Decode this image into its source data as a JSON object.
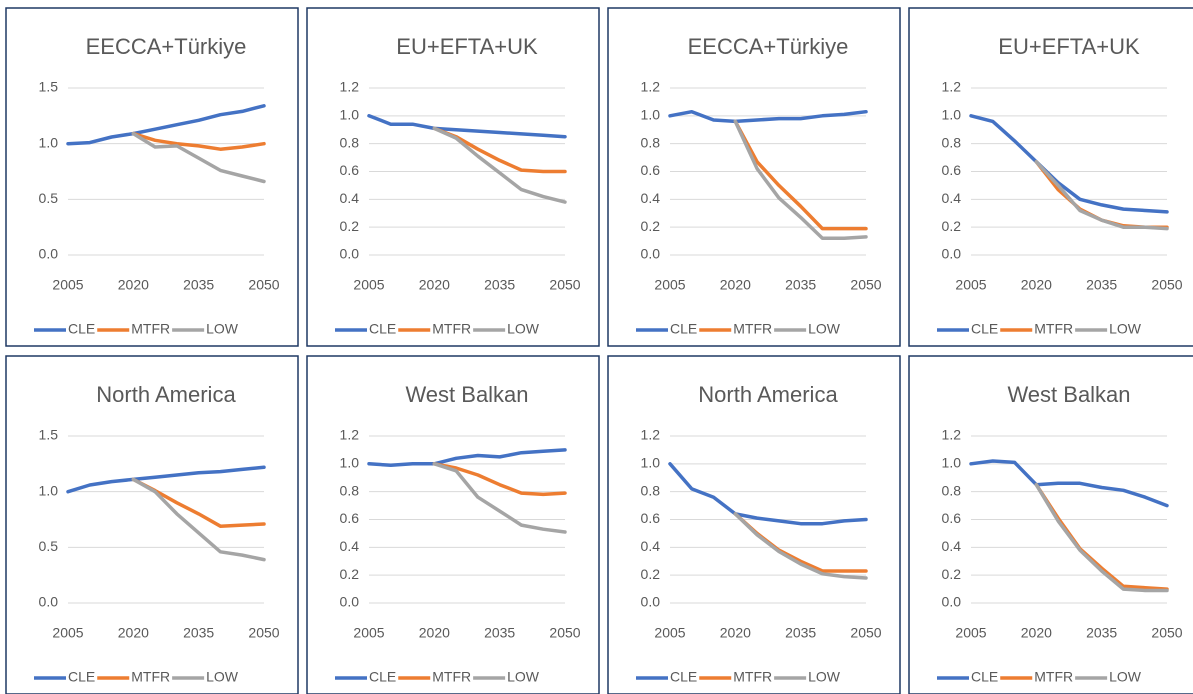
{
  "chart_data": [
    {
      "type": "line",
      "title": "EECCA+Türkiye",
      "x": [
        2005,
        2010,
        2015,
        2020,
        2025,
        2030,
        2035,
        2040,
        2045,
        2050
      ],
      "xlim": [
        2005,
        2050
      ],
      "xticks": [
        2005,
        2020,
        2035,
        2050
      ],
      "ylim": [
        0,
        1.5
      ],
      "yticks": [
        {
          "value": 0,
          "label": "0.0"
        },
        0.5,
        {
          "value": 1,
          "label": "1.0"
        },
        1.5
      ],
      "grid": true,
      "legend": "bottom",
      "series": [
        {
          "name": "CLE",
          "color": "#4472c4",
          "values": [
            1.0,
            1.01,
            1.06,
            1.09,
            1.13,
            1.17,
            1.21,
            1.26,
            1.29,
            1.34
          ]
        },
        {
          "name": "MTFR",
          "color": "#ed7d31",
          "values": [
            null,
            null,
            null,
            1.09,
            1.03,
            1.0,
            0.98,
            0.95,
            0.97,
            1.0
          ]
        },
        {
          "name": "LOW",
          "color": "#a5a5a5",
          "values": [
            null,
            null,
            null,
            1.09,
            0.97,
            0.98,
            0.87,
            0.76,
            0.71,
            0.66
          ]
        }
      ]
    },
    {
      "type": "line",
      "title": "EU+EFTA+UK",
      "x": [
        2005,
        2010,
        2015,
        2020,
        2025,
        2030,
        2035,
        2040,
        2045,
        2050
      ],
      "xlim": [
        2005,
        2050
      ],
      "xticks": [
        2005,
        2020,
        2035,
        2050
      ],
      "ylim": [
        0,
        1.2
      ],
      "yticks": [
        {
          "value": 0,
          "label": "0.0"
        },
        0.2,
        0.4,
        0.6,
        0.8,
        {
          "value": 1,
          "label": "1.0"
        },
        1.2
      ],
      "grid": true,
      "legend": "bottom",
      "series": [
        {
          "name": "CLE",
          "color": "#4472c4",
          "values": [
            1.0,
            0.94,
            0.94,
            0.91,
            0.9,
            0.89,
            0.88,
            0.87,
            0.86,
            0.85
          ]
        },
        {
          "name": "MTFR",
          "color": "#ed7d31",
          "values": [
            null,
            null,
            null,
            0.91,
            0.85,
            0.76,
            0.68,
            0.61,
            0.6,
            0.6
          ]
        },
        {
          "name": "LOW",
          "color": "#a5a5a5",
          "values": [
            null,
            null,
            null,
            0.91,
            0.84,
            0.71,
            0.59,
            0.47,
            0.42,
            0.38
          ]
        }
      ]
    },
    {
      "type": "line",
      "title": "EECCA+Türkiye",
      "x": [
        2005,
        2010,
        2015,
        2020,
        2025,
        2030,
        2035,
        2040,
        2045,
        2050
      ],
      "xlim": [
        2005,
        2050
      ],
      "xticks": [
        2005,
        2020,
        2035,
        2050
      ],
      "ylim": [
        0,
        1.2
      ],
      "yticks": [
        {
          "value": 0,
          "label": "0.0"
        },
        0.2,
        0.4,
        0.6,
        0.8,
        {
          "value": 1,
          "label": "1.0"
        },
        1.2
      ],
      "grid": true,
      "legend": "bottom",
      "series": [
        {
          "name": "CLE",
          "color": "#4472c4",
          "values": [
            1.0,
            1.03,
            0.97,
            0.96,
            0.97,
            0.98,
            0.98,
            1.0,
            1.01,
            1.03
          ]
        },
        {
          "name": "MTFR",
          "color": "#ed7d31",
          "values": [
            null,
            null,
            null,
            0.96,
            0.67,
            0.5,
            0.35,
            0.19,
            0.19,
            0.19
          ]
        },
        {
          "name": "LOW",
          "color": "#a5a5a5",
          "values": [
            null,
            null,
            null,
            0.96,
            0.62,
            0.41,
            0.27,
            0.12,
            0.12,
            0.13
          ]
        }
      ]
    },
    {
      "type": "line",
      "title": "EU+EFTA+UK",
      "x": [
        2005,
        2010,
        2015,
        2020,
        2025,
        2030,
        2035,
        2040,
        2045,
        2050
      ],
      "xlim": [
        2005,
        2050
      ],
      "xticks": [
        2005,
        2020,
        2035,
        2050
      ],
      "ylim": [
        0,
        1.2
      ],
      "yticks": [
        {
          "value": 0,
          "label": "0.0"
        },
        0.2,
        0.4,
        0.6,
        0.8,
        {
          "value": 1,
          "label": "1.0"
        },
        1.2
      ],
      "grid": true,
      "legend": "bottom",
      "series": [
        {
          "name": "CLE",
          "color": "#4472c4",
          "values": [
            1.0,
            0.96,
            0.82,
            0.67,
            0.52,
            0.4,
            0.36,
            0.33,
            0.32,
            0.31
          ]
        },
        {
          "name": "MTFR",
          "color": "#ed7d31",
          "values": [
            null,
            null,
            null,
            0.67,
            0.47,
            0.33,
            0.25,
            0.21,
            0.2,
            0.2
          ]
        },
        {
          "name": "LOW",
          "color": "#a5a5a5",
          "values": [
            null,
            null,
            null,
            0.67,
            0.5,
            0.32,
            0.25,
            0.2,
            0.2,
            0.19
          ]
        }
      ]
    },
    {
      "type": "line",
      "title": "North America",
      "x": [
        2005,
        2010,
        2015,
        2020,
        2025,
        2030,
        2035,
        2040,
        2045,
        2050
      ],
      "xlim": [
        2005,
        2050
      ],
      "xticks": [
        2005,
        2020,
        2035,
        2050
      ],
      "ylim": [
        0,
        1.5
      ],
      "yticks": [
        {
          "value": 0,
          "label": "0.0"
        },
        0.5,
        {
          "value": 1,
          "label": "1.0"
        },
        1.5
      ],
      "grid": true,
      "legend": "bottom",
      "series": [
        {
          "name": "CLE",
          "color": "#4472c4",
          "values": [
            1.0,
            1.06,
            1.09,
            1.11,
            1.13,
            1.15,
            1.17,
            1.18,
            1.2,
            1.22
          ]
        },
        {
          "name": "MTFR",
          "color": "#ed7d31",
          "values": [
            null,
            null,
            null,
            1.11,
            1.01,
            0.9,
            0.8,
            0.69,
            0.7,
            0.71
          ]
        },
        {
          "name": "LOW",
          "color": "#a5a5a5",
          "values": [
            null,
            null,
            null,
            1.11,
            1.0,
            0.8,
            0.63,
            0.46,
            0.43,
            0.39
          ]
        }
      ]
    },
    {
      "type": "line",
      "title": "West Balkan",
      "x": [
        2005,
        2010,
        2015,
        2020,
        2025,
        2030,
        2035,
        2040,
        2045,
        2050
      ],
      "xlim": [
        2005,
        2050
      ],
      "xticks": [
        2005,
        2020,
        2035,
        2050
      ],
      "ylim": [
        0,
        1.2
      ],
      "yticks": [
        {
          "value": 0,
          "label": "0.0"
        },
        0.2,
        0.4,
        0.6,
        0.8,
        {
          "value": 1,
          "label": "1.0"
        },
        1.2
      ],
      "grid": true,
      "legend": "bottom",
      "series": [
        {
          "name": "CLE",
          "color": "#4472c4",
          "values": [
            1.0,
            0.99,
            1.0,
            1.0,
            1.04,
            1.06,
            1.05,
            1.08,
            1.09,
            1.1
          ]
        },
        {
          "name": "MTFR",
          "color": "#ed7d31",
          "values": [
            null,
            null,
            null,
            1.0,
            0.97,
            0.92,
            0.85,
            0.79,
            0.78,
            0.79
          ]
        },
        {
          "name": "LOW",
          "color": "#a5a5a5",
          "values": [
            null,
            null,
            null,
            1.0,
            0.95,
            0.76,
            0.66,
            0.56,
            0.53,
            0.51
          ]
        }
      ]
    },
    {
      "type": "line",
      "title": "North America",
      "x": [
        2005,
        2010,
        2015,
        2020,
        2025,
        2030,
        2035,
        2040,
        2045,
        2050
      ],
      "xlim": [
        2005,
        2050
      ],
      "xticks": [
        2005,
        2020,
        2035,
        2050
      ],
      "ylim": [
        0,
        1.2
      ],
      "yticks": [
        {
          "value": 0,
          "label": "0.0"
        },
        0.2,
        0.4,
        0.6,
        0.8,
        {
          "value": 1,
          "label": "1.0"
        },
        1.2
      ],
      "grid": true,
      "legend": "bottom",
      "series": [
        {
          "name": "CLE",
          "color": "#4472c4",
          "values": [
            1.0,
            0.82,
            0.76,
            0.64,
            0.61,
            0.59,
            0.57,
            0.57,
            0.59,
            0.6
          ]
        },
        {
          "name": "MTFR",
          "color": "#ed7d31",
          "values": [
            null,
            null,
            null,
            0.64,
            0.5,
            0.38,
            0.3,
            0.23,
            0.23,
            0.23
          ]
        },
        {
          "name": "LOW",
          "color": "#a5a5a5",
          "values": [
            null,
            null,
            null,
            0.64,
            0.49,
            0.37,
            0.28,
            0.21,
            0.19,
            0.18
          ]
        }
      ]
    },
    {
      "type": "line",
      "title": "West Balkan",
      "x": [
        2005,
        2010,
        2015,
        2020,
        2025,
        2030,
        2035,
        2040,
        2045,
        2050
      ],
      "xlim": [
        2005,
        2050
      ],
      "xticks": [
        2005,
        2020,
        2035,
        2050
      ],
      "ylim": [
        0,
        1.2
      ],
      "yticks": [
        {
          "value": 0,
          "label": "0.0"
        },
        0.2,
        0.4,
        0.6,
        0.8,
        {
          "value": 1,
          "label": "1.0"
        },
        1.2
      ],
      "grid": true,
      "legend": "bottom",
      "series": [
        {
          "name": "CLE",
          "color": "#4472c4",
          "values": [
            1.0,
            1.02,
            1.01,
            0.85,
            0.86,
            0.86,
            0.83,
            0.81,
            0.76,
            0.7
          ]
        },
        {
          "name": "MTFR",
          "color": "#ed7d31",
          "values": [
            null,
            null,
            null,
            0.85,
            0.61,
            0.39,
            0.25,
            0.12,
            0.11,
            0.1
          ]
        },
        {
          "name": "LOW",
          "color": "#a5a5a5",
          "values": [
            null,
            null,
            null,
            0.85,
            0.59,
            0.38,
            0.23,
            0.1,
            0.09,
            0.09
          ]
        }
      ]
    }
  ]
}
